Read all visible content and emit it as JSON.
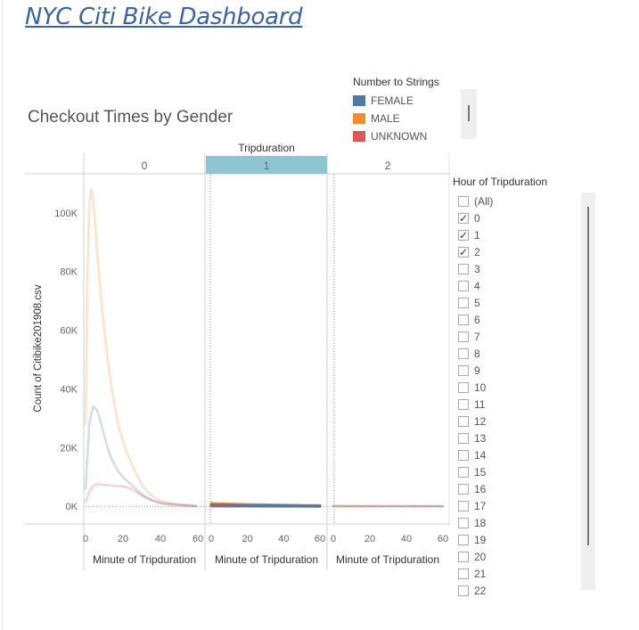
{
  "dashboard": {
    "title": "NYC Citi Bike Dashboard"
  },
  "sheet": {
    "title": "Checkout Times by Gender"
  },
  "legend": {
    "title": "Number to Strings",
    "items": [
      {
        "label": "FEMALE",
        "color": "#4e79a7"
      },
      {
        "label": "MALE",
        "color": "#f28e2b"
      },
      {
        "label": "UNKNOWN",
        "color": "#e15759"
      }
    ]
  },
  "filter": {
    "title": "Hour of Tripduration",
    "items": [
      {
        "label": "(All)",
        "checked": false
      },
      {
        "label": "0",
        "checked": true
      },
      {
        "label": "1",
        "checked": true
      },
      {
        "label": "2",
        "checked": true
      },
      {
        "label": "3",
        "checked": false
      },
      {
        "label": "4",
        "checked": false
      },
      {
        "label": "5",
        "checked": false
      },
      {
        "label": "6",
        "checked": false
      },
      {
        "label": "7",
        "checked": false
      },
      {
        "label": "8",
        "checked": false
      },
      {
        "label": "9",
        "checked": false
      },
      {
        "label": "10",
        "checked": false
      },
      {
        "label": "11",
        "checked": false
      },
      {
        "label": "12",
        "checked": false
      },
      {
        "label": "13",
        "checked": false
      },
      {
        "label": "14",
        "checked": false
      },
      {
        "label": "15",
        "checked": false
      },
      {
        "label": "16",
        "checked": false
      },
      {
        "label": "17",
        "checked": false
      },
      {
        "label": "18",
        "checked": false
      },
      {
        "label": "19",
        "checked": false
      },
      {
        "label": "20",
        "checked": false
      },
      {
        "label": "21",
        "checked": false
      },
      {
        "label": "22",
        "checked": false
      }
    ]
  },
  "chart_data": {
    "type": "line",
    "column_header": "Tripduration",
    "panel_labels": [
      "0",
      "1",
      "2"
    ],
    "highlighted_panel": "1",
    "highlight_color": "#8fc4d2",
    "xlabel": "Minute of Tripduration",
    "ylabel": "Count of Citibike201908.csv",
    "x_ticks": [
      0,
      20,
      40,
      60
    ],
    "y_ticks": [
      0,
      20000,
      40000,
      60000,
      80000,
      100000
    ],
    "y_tick_labels": [
      "0K",
      "20K",
      "40K",
      "60K",
      "80K",
      "100K"
    ],
    "xlim": [
      0,
      60
    ],
    "ylim": [
      -6000,
      113000
    ],
    "faded_opacity": 0.25,
    "panels": [
      {
        "label": "0",
        "series": [
          {
            "name": "FEMALE",
            "x": [
              0,
              2,
              4,
              6,
              8,
              10,
              12,
              14,
              16,
              18,
              20,
              22,
              24,
              26,
              28,
              30,
              32,
              34,
              36,
              38,
              40,
              42,
              44,
              46,
              48,
              50,
              52,
              54,
              56,
              58,
              59
            ],
            "y": [
              6000,
              28000,
              34000,
              33000,
              29000,
              24000,
              19500,
              16000,
              13500,
              11500,
              10000,
              8800,
              7600,
              6400,
              5200,
              4100,
              3200,
              2500,
              1900,
              1500,
              1200,
              1000,
              900,
              800,
              700,
              600,
              500,
              400,
              300,
              200,
              100
            ]
          },
          {
            "name": "MALE",
            "x": [
              0,
              1,
              2,
              3,
              4,
              5,
              6,
              8,
              10,
              12,
              14,
              16,
              18,
              20,
              22,
              24,
              26,
              28,
              30,
              32,
              34,
              36,
              38,
              40,
              42,
              44,
              46,
              48,
              50,
              52,
              54,
              56,
              58,
              59
            ],
            "y": [
              28000,
              80000,
              103000,
              108000,
              105000,
              97000,
              88000,
              73000,
              60000,
              49000,
              40000,
              32500,
              26500,
              22000,
              18500,
              15500,
              12500,
              10000,
              7500,
              5800,
              4400,
              3300,
              2600,
              2000,
              1600,
              1300,
              1000,
              800,
              600,
              500,
              400,
              300,
              200,
              100
            ]
          },
          {
            "name": "UNKNOWN",
            "x": [
              0,
              2,
              4,
              6,
              8,
              10,
              12,
              14,
              16,
              18,
              20,
              22,
              24,
              26,
              28,
              30,
              32,
              34,
              36,
              38,
              40,
              42,
              44,
              46,
              48,
              50,
              52,
              54,
              56,
              58,
              59
            ],
            "y": [
              1500,
              5000,
              7000,
              7500,
              7500,
              7400,
              7200,
              7100,
              7000,
              6900,
              6800,
              6500,
              6000,
              5300,
              4500,
              3800,
              3100,
              2500,
              2000,
              1600,
              1200,
              900,
              700,
              500,
              400,
              300,
              200,
              150,
              100,
              80,
              50
            ]
          }
        ]
      },
      {
        "label": "1",
        "series": [
          {
            "name": "FEMALE",
            "x": [
              0,
              10,
              20,
              30,
              40,
              50,
              60
            ],
            "y": [
              500,
              400,
              300,
              250,
              200,
              150,
              100
            ]
          },
          {
            "name": "MALE",
            "x": [
              0,
              10,
              20,
              30,
              40,
              50,
              60
            ],
            "y": [
              1000,
              800,
              650,
              550,
              450,
              350,
              300
            ]
          },
          {
            "name": "UNKNOWN",
            "x": [
              0,
              10,
              20,
              30,
              40,
              50,
              60
            ],
            "y": [
              100,
              80,
              60,
              50,
              40,
              30,
              20
            ]
          }
        ]
      },
      {
        "label": "2",
        "series": [
          {
            "name": "FEMALE",
            "x": [
              0,
              10,
              20,
              30,
              40,
              50,
              60
            ],
            "y": [
              60,
              50,
              45,
              40,
              35,
              30,
              25
            ]
          },
          {
            "name": "MALE",
            "x": [
              0,
              10,
              20,
              30,
              40,
              50,
              60
            ],
            "y": [
              150,
              130,
              110,
              100,
              90,
              80,
              70
            ]
          },
          {
            "name": "UNKNOWN",
            "x": [
              0,
              10,
              20,
              30,
              40,
              50,
              60
            ],
            "y": [
              20,
              18,
              15,
              12,
              10,
              8,
              5
            ]
          }
        ]
      }
    ]
  }
}
